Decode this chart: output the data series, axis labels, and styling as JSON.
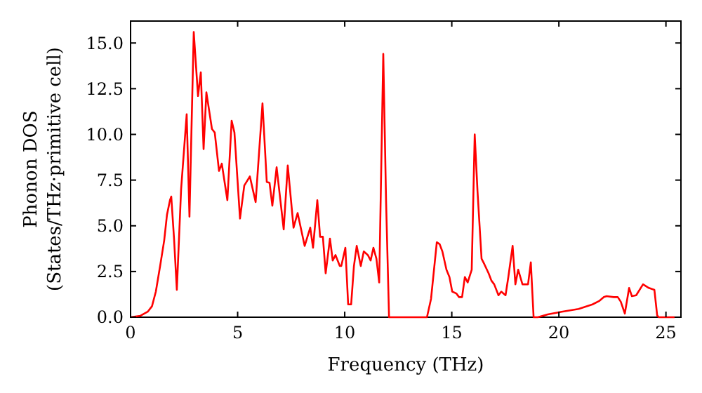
{
  "chart_data": {
    "type": "line",
    "xlabel": "Frequency (THz)",
    "ylabel": "Phonon DOS\n(States/THz·primitive cell)",
    "xlim": [
      0,
      25.7
    ],
    "ylim": [
      0,
      16.2
    ],
    "xticks": [
      0,
      5,
      10,
      15,
      20,
      25
    ],
    "yticks": [
      {
        "value": 0,
        "label": "0.0"
      },
      {
        "value": 2.5,
        "label": "2.5"
      },
      {
        "value": 5,
        "label": "5.0"
      },
      {
        "value": 7.5,
        "label": "7.5"
      },
      {
        "value": 10,
        "label": "10.0"
      },
      {
        "value": 12.5,
        "label": "12.5"
      },
      {
        "value": 15,
        "label": "15.0"
      }
    ],
    "grid": false,
    "marker": "none",
    "line_style": "solid",
    "series": [
      {
        "color": "#ff0000",
        "x": [
          0,
          0.46,
          0.8,
          1.0,
          1.18,
          1.38,
          1.57,
          1.7,
          1.84,
          1.9,
          2.03,
          2.16,
          2.36,
          2.62,
          2.75,
          2.95,
          3.15,
          3.28,
          3.41,
          3.54,
          3.8,
          3.93,
          4.13,
          4.26,
          4.52,
          4.72,
          4.85,
          5.11,
          5.31,
          5.57,
          5.84,
          6.16,
          6.36,
          6.49,
          6.62,
          6.82,
          7.15,
          7.34,
          7.61,
          7.8,
          8.13,
          8.39,
          8.52,
          8.72,
          8.85,
          8.98,
          9.11,
          9.31,
          9.44,
          9.57,
          9.77,
          9.84,
          10.03,
          10.16,
          10.3,
          10.43,
          10.56,
          10.75,
          10.89,
          11.08,
          11.21,
          11.34,
          11.48,
          11.61,
          11.8,
          11.93,
          12.07,
          13.84,
          14.03,
          14.3,
          14.43,
          14.56,
          14.75,
          14.89,
          15.02,
          15.21,
          15.34,
          15.48,
          15.61,
          15.74,
          15.93,
          16.07,
          16.2,
          16.39,
          16.52,
          16.72,
          16.85,
          16.98,
          17.18,
          17.31,
          17.51,
          17.64,
          17.84,
          17.97,
          18.1,
          18.3,
          18.56,
          18.69,
          18.82,
          19.02,
          19.48,
          20.13,
          20.92,
          21.57,
          21.9,
          22.1,
          22.23,
          22.56,
          22.75,
          22.89,
          23.08,
          23.28,
          23.41,
          23.61,
          23.93,
          24.2,
          24.46,
          24.59,
          24.66,
          25.4
        ],
        "values": [
          0,
          0.08,
          0.3,
          0.6,
          1.4,
          2.8,
          4.2,
          5.6,
          6.4,
          6.6,
          4.3,
          1.5,
          7.0,
          11.1,
          5.5,
          15.6,
          12.1,
          13.4,
          9.2,
          12.3,
          10.3,
          10.1,
          8.0,
          8.4,
          6.4,
          10.75,
          10.1,
          5.4,
          7.2,
          7.7,
          6.3,
          11.7,
          7.4,
          7.35,
          6.1,
          8.2,
          4.8,
          8.3,
          4.9,
          5.7,
          3.9,
          4.9,
          3.8,
          6.4,
          4.4,
          4.4,
          2.4,
          4.3,
          3.1,
          3.4,
          2.8,
          2.8,
          3.8,
          0.7,
          0.7,
          2.8,
          3.9,
          2.8,
          3.6,
          3.4,
          3.1,
          3.8,
          3.2,
          1.9,
          14.4,
          6.4,
          0,
          0,
          1.0,
          4.1,
          4.0,
          3.6,
          2.6,
          2.2,
          1.4,
          1.3,
          1.1,
          1.1,
          2.2,
          1.9,
          2.6,
          10.0,
          6.9,
          3.2,
          2.9,
          2.4,
          2.0,
          1.8,
          1.2,
          1.4,
          1.2,
          2.2,
          3.9,
          1.8,
          2.6,
          1.8,
          1.8,
          3.0,
          0,
          0,
          0.15,
          0.3,
          0.45,
          0.7,
          0.9,
          1.1,
          1.15,
          1.1,
          1.1,
          0.85,
          0.2,
          1.6,
          1.15,
          1.2,
          1.8,
          1.6,
          1.5,
          0.1,
          0,
          0
        ]
      }
    ]
  }
}
